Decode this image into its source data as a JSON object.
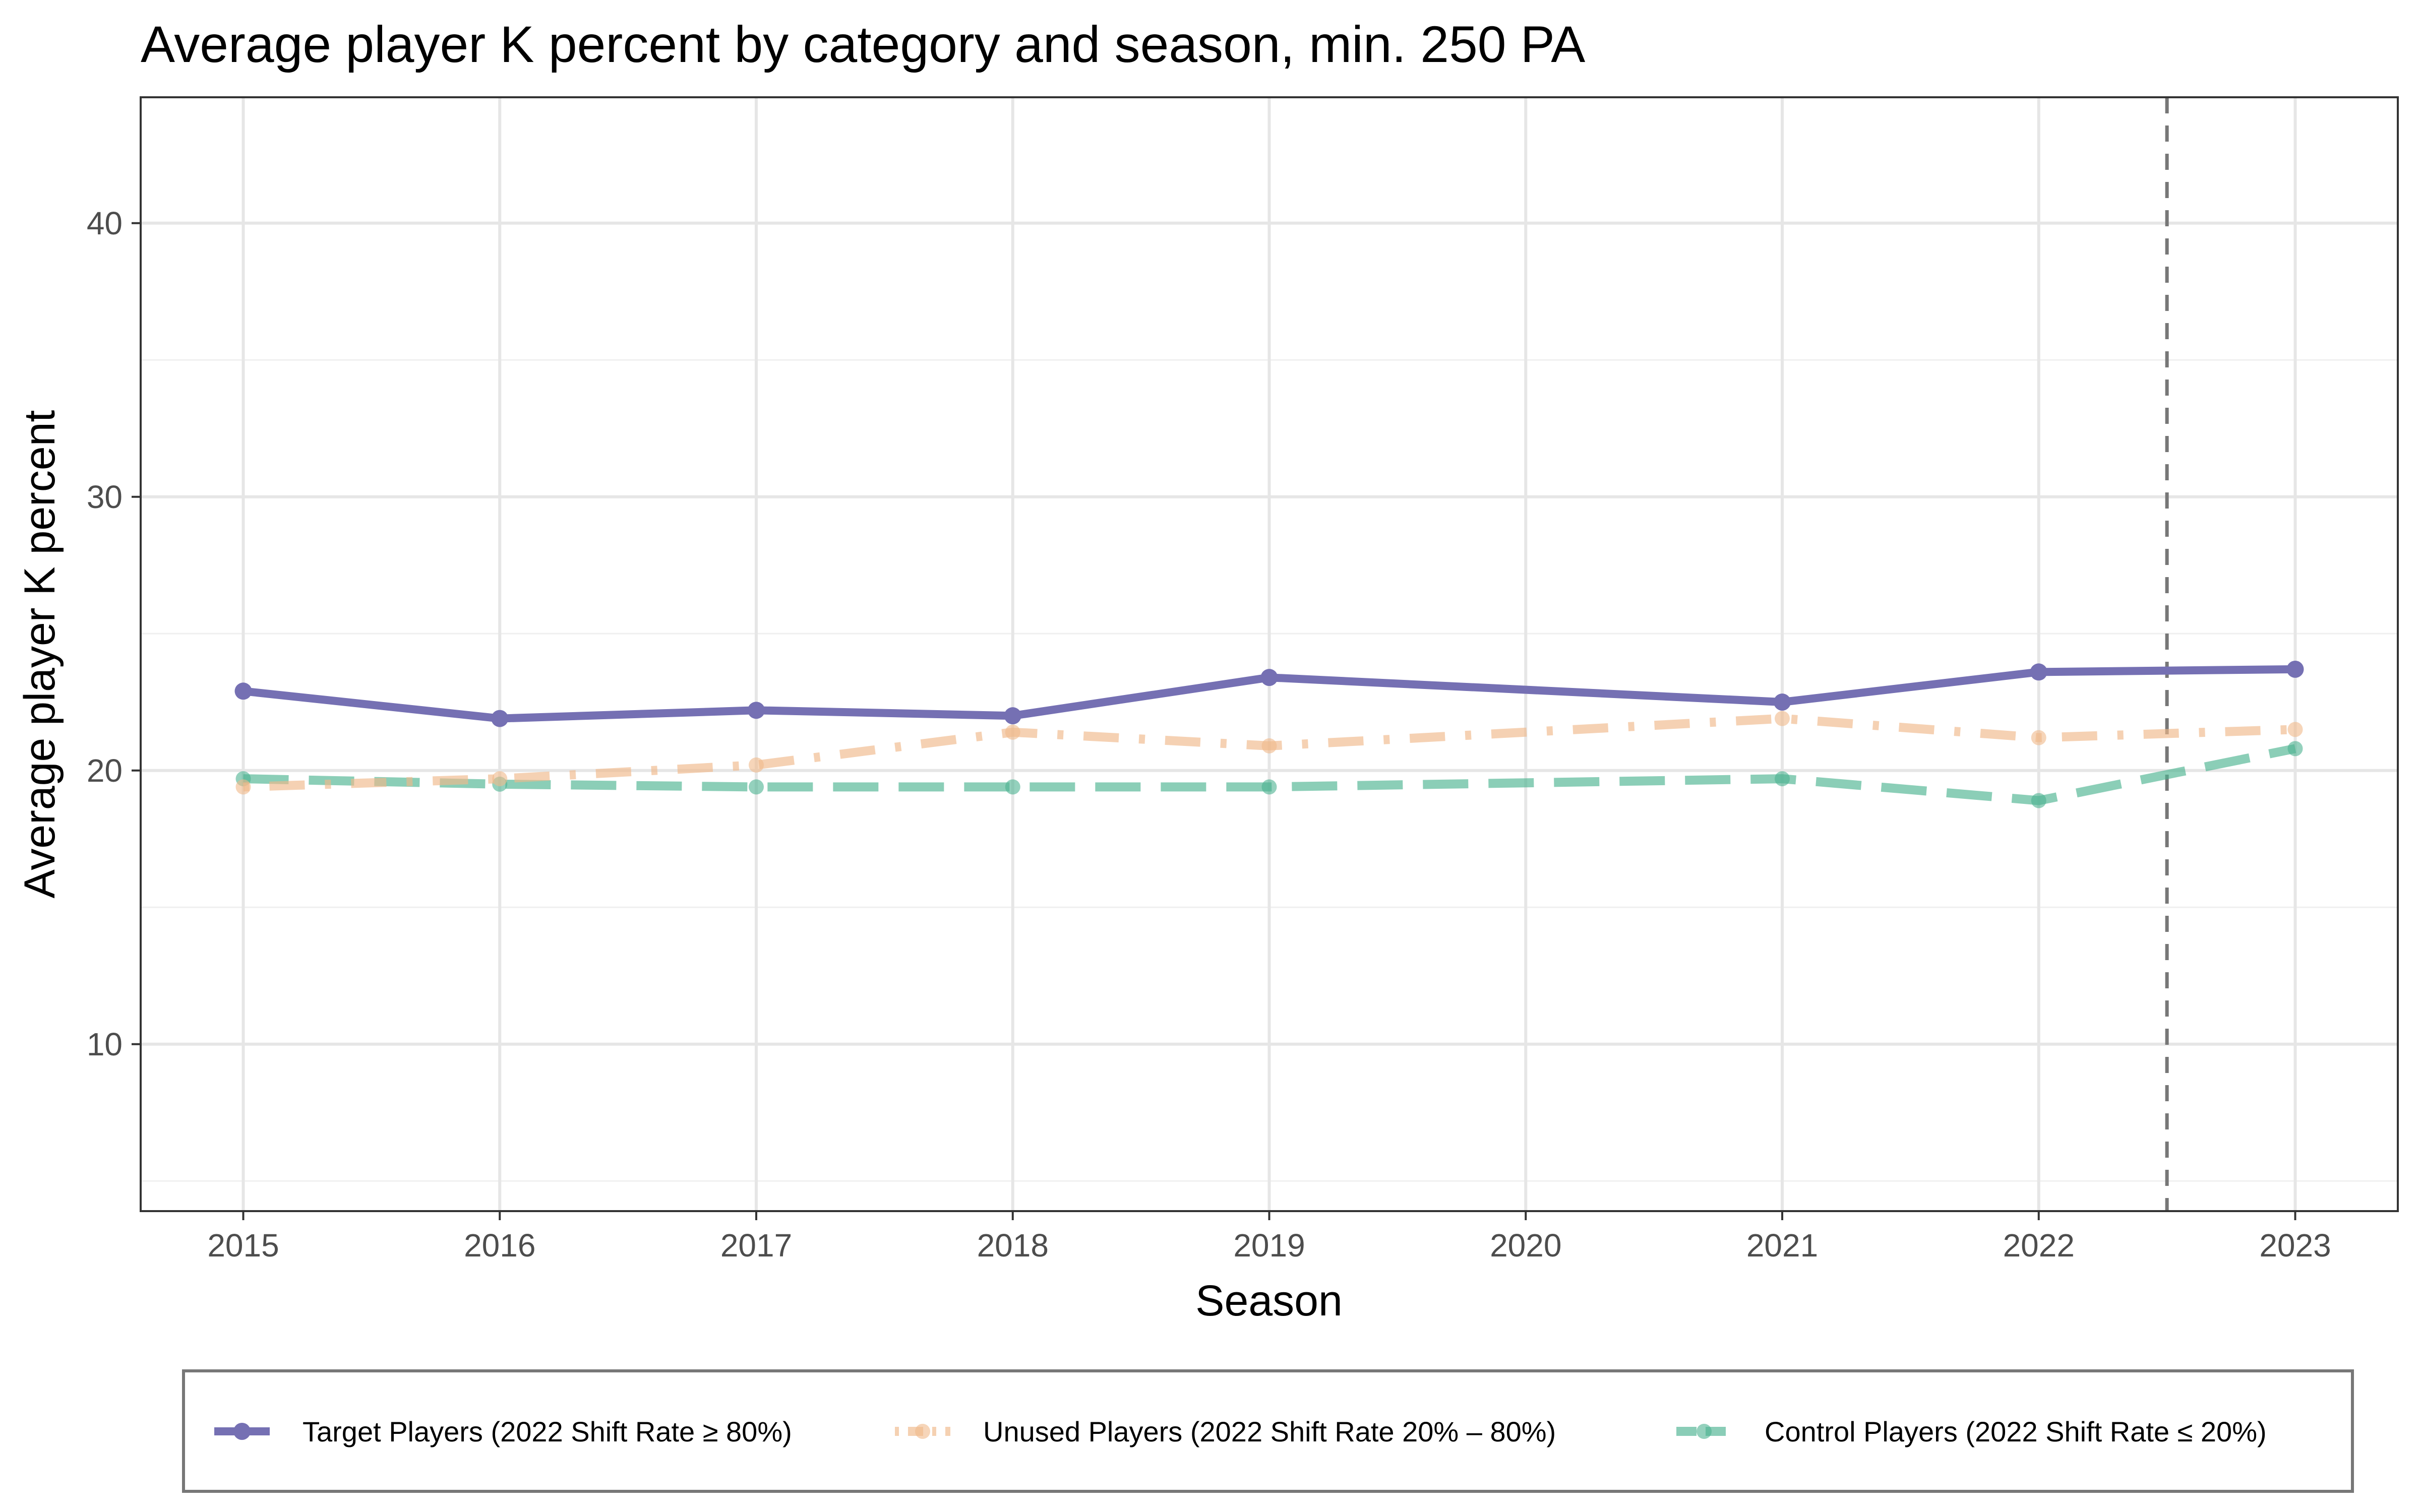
{
  "chart_data": {
    "type": "line",
    "title": "Average player K percent by category and season, min. 250 PA",
    "xlabel": "Season",
    "ylabel": "Average player K percent",
    "xlim": [
      2014.6,
      2023.4
    ],
    "ylim": [
      3.9,
      44.6
    ],
    "x_ticks": [
      2015,
      2016,
      2017,
      2018,
      2019,
      2020,
      2021,
      2022,
      2023
    ],
    "y_ticks": [
      10,
      20,
      30,
      40
    ],
    "grid": true,
    "legend_position": "bottom",
    "reference_lines": [
      {
        "orientation": "vertical",
        "x": 2022.5,
        "style": "dashed",
        "color": "#777777"
      }
    ],
    "series": [
      {
        "name": "Target Players (2022 Shift Rate ≥ 80%)",
        "color": "#7570b3",
        "line_style": "solid",
        "x": [
          2015,
          2016,
          2017,
          2018,
          2019,
          2021,
          2022,
          2023
        ],
        "values": [
          22.9,
          21.9,
          22.2,
          22.0,
          23.4,
          22.5,
          23.6,
          23.7
        ]
      },
      {
        "name": "Unused Players (2022 Shift Rate 20% – 80%)",
        "color": "#f0b98a",
        "line_style": "dotdash",
        "x": [
          2015,
          2016,
          2017,
          2018,
          2019,
          2021,
          2022,
          2023
        ],
        "values": [
          19.4,
          19.7,
          20.2,
          21.4,
          20.9,
          21.9,
          21.2,
          21.5
        ]
      },
      {
        "name": "Control Players (2022 Shift Rate ≤ 20%)",
        "color": "#4db391",
        "line_style": "dashed",
        "x": [
          2015,
          2016,
          2017,
          2018,
          2019,
          2021,
          2022,
          2023
        ],
        "values": [
          19.7,
          19.5,
          19.4,
          19.4,
          19.4,
          19.7,
          18.9,
          20.8
        ]
      }
    ]
  }
}
